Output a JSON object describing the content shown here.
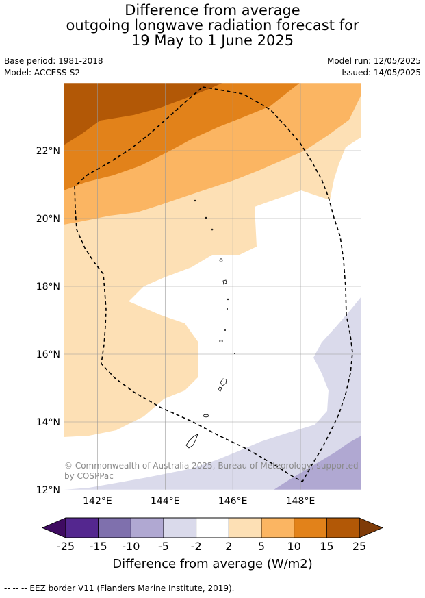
{
  "title_lines": [
    "Difference from average",
    "outgoing longwave radiation forecast for",
    "19 May to 1 June 2025"
  ],
  "base_period": "Base period: 1981-2018",
  "model": "Model: ACCESS-S2",
  "model_run": "Model run: 12/05/2025",
  "issued": "Issued: 14/05/2025",
  "lat_labels": [
    "22°N",
    "20°N",
    "18°N",
    "16°N",
    "14°N",
    "12°N"
  ],
  "lon_labels": [
    "142°E",
    "144°E",
    "146°E",
    "148°E"
  ],
  "copyright_lines": [
    "© Commonwealth of Australia 2025, Bureau of Meteorology, supported",
    "by COSPPac"
  ],
  "colorbar": {
    "ticks": [
      "-25",
      "-15",
      "-10",
      "-5",
      "-2",
      "2",
      "5",
      "10",
      "15",
      "25"
    ],
    "colors": [
      "#54278f",
      "#7f70ad",
      "#b0a8d2",
      "#dadaeb",
      "#ffffff",
      "#fde0b5",
      "#fbb562",
      "#e2821a",
      "#b25806"
    ],
    "under_color": "#3f0b61",
    "over_color": "#7f3b08",
    "label": "Difference from average (W/m2)"
  },
  "footnote": "--  --  -- EEZ border V11 (Flanders Marine Institute, 2019).",
  "map": {
    "extent": {
      "lon": [
        141,
        149.8
      ],
      "lat": [
        12,
        24
      ]
    },
    "lat_ticks": [
      22,
      20,
      18,
      16,
      14,
      12
    ],
    "lon_ticks": [
      142,
      144,
      146,
      148
    ],
    "colors": {
      "dark_orange": "#b25806",
      "orange": "#e2821a",
      "light_orange": "#fbb562",
      "pale_orange": "#fde0b5",
      "pale_purple": "#dadaeb",
      "light_purple": "#b0a8d2",
      "grid": "#999999",
      "eez": "#000000"
    }
  }
}
